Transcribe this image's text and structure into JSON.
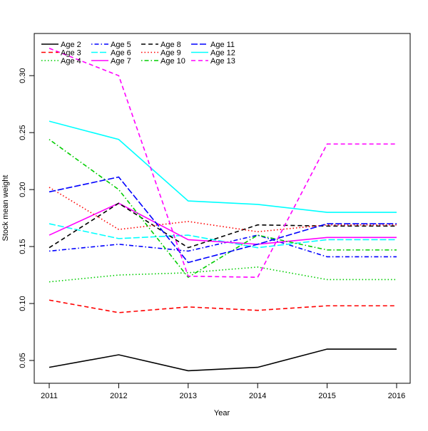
{
  "chart_data": {
    "type": "line",
    "title": "",
    "xlabel": "Year",
    "ylabel": "Stock mean weight",
    "x": [
      2011,
      2012,
      2013,
      2014,
      2015,
      2016
    ],
    "x_ticks": [
      "2011",
      "2012",
      "2013",
      "2014",
      "2015",
      "2016"
    ],
    "y_ticks": [
      "0.05",
      "0.10",
      "0.15",
      "0.20",
      "0.25",
      "0.30"
    ],
    "y_tick_values": [
      0.05,
      0.1,
      0.15,
      0.2,
      0.25,
      0.3
    ],
    "xlim": [
      2011,
      2016
    ],
    "ylim": [
      0.03,
      0.337
    ],
    "grid": false,
    "legend_position": "top-left",
    "series": [
      {
        "name": "Age 2",
        "color": "#000000",
        "style": "solid",
        "values": [
          0.044,
          0.055,
          0.041,
          0.044,
          0.06,
          0.06
        ]
      },
      {
        "name": "Age 3",
        "color": "#ff0000",
        "style": "dashed",
        "values": [
          0.103,
          0.092,
          0.097,
          0.094,
          0.098,
          0.098
        ]
      },
      {
        "name": "Age 4",
        "color": "#00cd00",
        "style": "dotted",
        "values": [
          0.119,
          0.125,
          0.127,
          0.132,
          0.121,
          0.121
        ]
      },
      {
        "name": "Age 5",
        "color": "#0000ff",
        "style": "dotdash",
        "values": [
          0.146,
          0.152,
          0.146,
          0.16,
          0.141,
          0.141
        ]
      },
      {
        "name": "Age 6",
        "color": "#00ffff",
        "style": "longdash",
        "values": [
          0.17,
          0.157,
          0.16,
          0.149,
          0.156,
          0.156
        ]
      },
      {
        "name": "Age 7",
        "color": "#ff00ff",
        "style": "solid",
        "values": [
          0.16,
          0.188,
          0.156,
          0.152,
          0.158,
          0.158
        ]
      },
      {
        "name": "Age 8",
        "color": "#000000",
        "style": "dashed",
        "values": [
          0.149,
          0.188,
          0.149,
          0.169,
          0.168,
          0.168
        ]
      },
      {
        "name": "Age 9",
        "color": "#ff0000",
        "style": "dotted",
        "values": [
          0.202,
          0.165,
          0.172,
          0.163,
          0.169,
          0.169
        ]
      },
      {
        "name": "Age 10",
        "color": "#00cd00",
        "style": "dotdash",
        "values": [
          0.244,
          0.2,
          0.123,
          0.16,
          0.147,
          0.147
        ]
      },
      {
        "name": "Age 11",
        "color": "#0000ff",
        "style": "longdash",
        "values": [
          0.198,
          0.211,
          0.136,
          0.152,
          0.17,
          0.17
        ]
      },
      {
        "name": "Age 12",
        "color": "#00ffff",
        "style": "solid",
        "values": [
          0.26,
          0.244,
          0.19,
          0.187,
          0.18,
          0.18
        ]
      },
      {
        "name": "Age 13",
        "color": "#ff00ff",
        "style": "dashed",
        "values": [
          0.324,
          0.3,
          0.124,
          0.123,
          0.24,
          0.24
        ]
      }
    ]
  }
}
